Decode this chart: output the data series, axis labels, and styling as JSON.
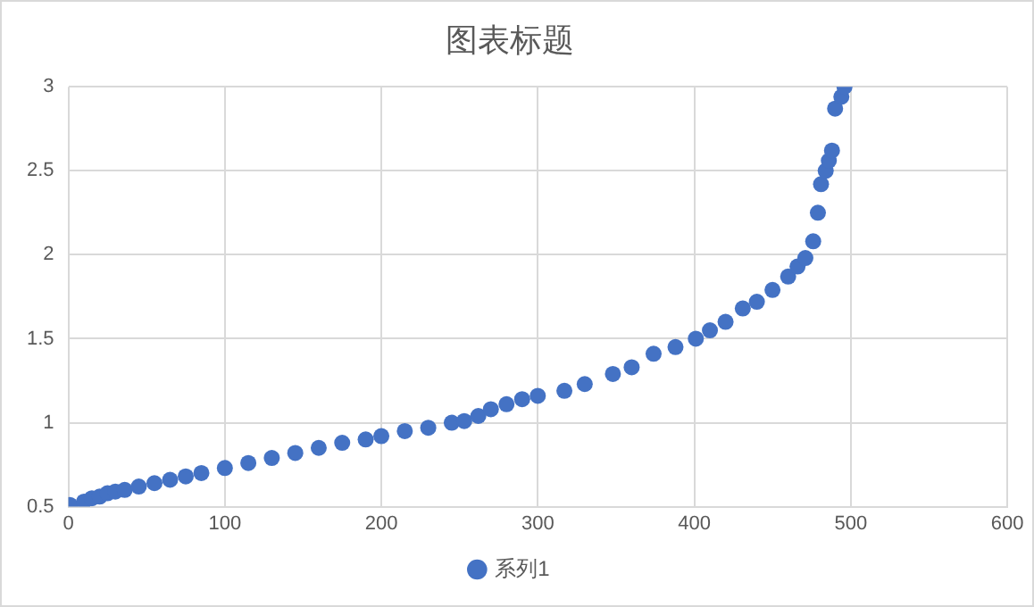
{
  "chart_data": {
    "type": "scatter",
    "title": "图表标题",
    "xlim": [
      0,
      600
    ],
    "xticks": [
      0,
      100,
      200,
      300,
      400,
      500,
      600
    ],
    "ylim": [
      0.5,
      3
    ],
    "yticks": [
      0.5,
      1,
      1.5,
      2,
      2.5,
      3
    ],
    "grid": true,
    "legend": "bottom",
    "marker": "circle",
    "series": [
      {
        "name": "系列1",
        "color": "#4472c4",
        "x": [
          1,
          10,
          15,
          20,
          25,
          30,
          36,
          45,
          55,
          65,
          75,
          85,
          100,
          115,
          130,
          145,
          160,
          175,
          190,
          200,
          215,
          230,
          245,
          253,
          262,
          270,
          280,
          290,
          300,
          317,
          330,
          348,
          360,
          374,
          388,
          401,
          410,
          420,
          431,
          440,
          450,
          460,
          466,
          471,
          476,
          479,
          481,
          484,
          486,
          488,
          490,
          494,
          496
        ],
        "values": [
          0.51,
          0.53,
          0.55,
          0.56,
          0.58,
          0.59,
          0.6,
          0.62,
          0.64,
          0.66,
          0.68,
          0.7,
          0.73,
          0.76,
          0.79,
          0.82,
          0.85,
          0.88,
          0.9,
          0.92,
          0.95,
          0.97,
          1.0,
          1.01,
          1.04,
          1.08,
          1.11,
          1.14,
          1.16,
          1.19,
          1.23,
          1.29,
          1.33,
          1.41,
          1.45,
          1.5,
          1.55,
          1.6,
          1.68,
          1.72,
          1.79,
          1.87,
          1.93,
          1.98,
          2.08,
          2.25,
          2.42,
          2.5,
          2.56,
          2.62,
          2.87,
          2.94,
          3.0
        ]
      }
    ]
  }
}
